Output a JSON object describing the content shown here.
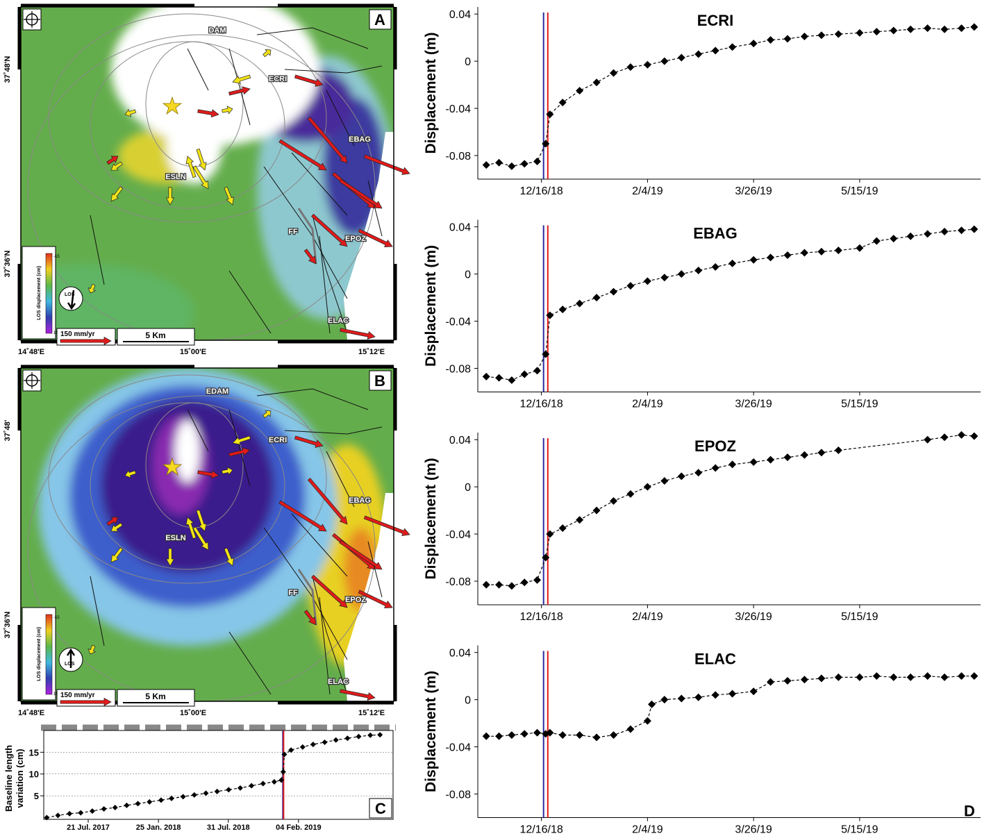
{
  "maps": [
    {
      "panel_label": "A",
      "lat_labels": [
        "37˚48'N",
        "37˚36'N"
      ],
      "lon_labels": [
        "14˚48'E",
        "15˚00'E",
        "15˚12'E"
      ],
      "station_labels": [
        "DAM",
        "ECRI",
        "EBAG",
        "ESLN",
        "EPOZ",
        "ELAC"
      ],
      "fault_label": "FF",
      "legend": {
        "title": "LOS displacement (cm)",
        "min": -15,
        "max": 15,
        "los": "LOS",
        "velocity": "150 mm/yr",
        "scale": "5 Km"
      }
    },
    {
      "panel_label": "B",
      "lat_labels": [
        "37˚48'",
        "37˚36'N"
      ],
      "lon_labels": [
        "14˚48'E",
        "15˚00'E",
        "15˚12'E"
      ],
      "station_labels": [
        "EDAM",
        "ECRI",
        "EBAG",
        "ESLN",
        "EPOZ",
        "ELAC"
      ],
      "fault_label": "FF",
      "legend": {
        "title": "LOS displacement (cm)",
        "min": -15,
        "max": 15,
        "los": "LOS",
        "velocity": "150 mm/yr",
        "scale": "5 Km"
      }
    }
  ],
  "chart_data": [
    {
      "type": "line",
      "panel_label": "C",
      "ylabel": [
        "Baseline length",
        "variation (cm)"
      ],
      "color": "#000000",
      "grid": true,
      "x": [
        "2017-04-01",
        "2017-05-01",
        "2017-06-01",
        "2017-07-01",
        "2017-08-01",
        "2017-09-01",
        "2017-10-01",
        "2017-11-01",
        "2017-12-01",
        "2018-01-01",
        "2018-02-01",
        "2018-03-01",
        "2018-04-01",
        "2018-05-01",
        "2018-06-01",
        "2018-07-01",
        "2018-08-01",
        "2018-09-01",
        "2018-10-01",
        "2018-11-01",
        "2018-12-01",
        "2018-12-20",
        "2018-12-25",
        "2018-12-28",
        "2019-01-15",
        "2019-02-15",
        "2019-03-15",
        "2019-04-15",
        "2019-05-15",
        "2019-06-15",
        "2019-07-15",
        "2019-08-15",
        "2019-09-10"
      ],
      "values": [
        0,
        0.5,
        0.9,
        1.1,
        1.5,
        2.0,
        2.3,
        2.8,
        3.2,
        3.6,
        4.0,
        4.4,
        4.8,
        5.2,
        5.6,
        6.0,
        6.4,
        6.8,
        7.3,
        7.8,
        8.2,
        8.6,
        10.5,
        14.5,
        15.5,
        16.2,
        16.8,
        17.3,
        17.8,
        18.2,
        18.6,
        18.9,
        19.0
      ],
      "xlim": [
        "2017-03-24",
        "2019-10-15"
      ],
      "ylim": [
        -0.4,
        20
      ],
      "xticks": [
        {
          "value": "2017-07-21",
          "label": "21 Jul. 2017"
        },
        {
          "value": "2018-01-25",
          "label": "25 Jan. 2018"
        },
        {
          "value": "2018-07-31",
          "label": "31 Jul. 2018"
        },
        {
          "value": "2019-02-04",
          "label": "04 Feb. 2019"
        }
      ],
      "yticks": [
        5,
        10,
        15
      ],
      "event_lines": [
        {
          "x": "2018-12-24",
          "color": "#2a2a9c"
        },
        {
          "x": "2018-12-26",
          "color": "#e01b1b"
        }
      ]
    },
    {
      "type": "line",
      "title": "ECRI",
      "ylabel": "Displacement (m)",
      "color": "#000000",
      "x": [
        "2018-11-20",
        "2018-11-26",
        "2018-12-02",
        "2018-12-08",
        "2018-12-14",
        "2018-12-18",
        "2018-12-20",
        "2018-12-26",
        "2019-01-03",
        "2019-01-11",
        "2019-01-19",
        "2019-01-27",
        "2019-02-04",
        "2019-02-12",
        "2019-02-20",
        "2019-02-28",
        "2019-03-08",
        "2019-03-16",
        "2019-03-26",
        "2019-04-03",
        "2019-04-11",
        "2019-04-19",
        "2019-04-27",
        "2019-05-05",
        "2019-05-15",
        "2019-05-23",
        "2019-05-31",
        "2019-06-08",
        "2019-06-16",
        "2019-06-24",
        "2019-07-02",
        "2019-07-08"
      ],
      "values": [
        -0.088,
        -0.086,
        -0.089,
        -0.087,
        -0.085,
        -0.07,
        -0.045,
        -0.035,
        -0.025,
        -0.018,
        -0.01,
        -0.005,
        -0.003,
        0,
        0.003,
        0.006,
        0.009,
        0.012,
        0.015,
        0.018,
        0.019,
        0.021,
        0.022,
        0.023,
        0.024,
        0.025,
        0.026,
        0.027,
        0.028,
        0.027,
        0.028,
        0.029
      ],
      "xlim": [
        "2018-11-16",
        "2019-07-11"
      ],
      "ylim": [
        -0.1,
        0.046
      ],
      "xticks": [
        {
          "value": "2018-12-16",
          "label": "12/16/18"
        },
        {
          "value": "2019-02-04",
          "label": "2/4/19"
        },
        {
          "value": "2019-03-26",
          "label": "3/26/19"
        },
        {
          "value": "2019-05-15",
          "label": "5/15/19"
        }
      ],
      "yticks": [
        0.04,
        0,
        -0.04,
        -0.08
      ],
      "event_lines": [
        {
          "x": "2018-12-17",
          "color": "#2a2a9c"
        },
        {
          "x": "2018-12-19",
          "color": "#e01b1b"
        }
      ]
    },
    {
      "type": "line",
      "title": "EBAG",
      "ylabel": "Displacement (m)",
      "color": "#000000",
      "x": [
        "2018-11-20",
        "2018-11-26",
        "2018-12-02",
        "2018-12-08",
        "2018-12-14",
        "2018-12-18",
        "2018-12-20",
        "2018-12-26",
        "2019-01-03",
        "2019-01-11",
        "2019-01-19",
        "2019-01-27",
        "2019-02-04",
        "2019-02-12",
        "2019-02-20",
        "2019-02-28",
        "2019-03-08",
        "2019-03-16",
        "2019-03-26",
        "2019-04-03",
        "2019-04-11",
        "2019-04-19",
        "2019-04-27",
        "2019-05-05",
        "2019-05-15",
        "2019-05-23",
        "2019-05-31",
        "2019-06-08",
        "2019-06-16",
        "2019-06-24",
        "2019-07-02",
        "2019-07-08"
      ],
      "values": [
        -0.087,
        -0.088,
        -0.09,
        -0.085,
        -0.082,
        -0.068,
        -0.035,
        -0.03,
        -0.025,
        -0.02,
        -0.015,
        -0.01,
        -0.006,
        -0.003,
        0,
        0.003,
        0.006,
        0.009,
        0.012,
        0.014,
        0.016,
        0.018,
        0.019,
        0.02,
        0.022,
        0.028,
        0.03,
        0.032,
        0.034,
        0.036,
        0.037,
        0.038
      ],
      "xlim": [
        "2018-11-16",
        "2019-07-11"
      ],
      "ylim": [
        -0.1,
        0.046
      ],
      "xticks": [
        {
          "value": "2018-12-16",
          "label": "12/16/18"
        },
        {
          "value": "2019-02-04",
          "label": "2/4/19"
        },
        {
          "value": "2019-03-26",
          "label": "3/26/19"
        },
        {
          "value": "2019-05-15",
          "label": "5/15/19"
        }
      ],
      "yticks": [
        0.04,
        0,
        -0.04,
        -0.08
      ],
      "event_lines": [
        {
          "x": "2018-12-17",
          "color": "#2a2a9c"
        },
        {
          "x": "2018-12-19",
          "color": "#e01b1b"
        }
      ]
    },
    {
      "type": "line",
      "title": "EPOZ",
      "ylabel": "Displacement (m)",
      "color": "#000000",
      "x": [
        "2018-11-20",
        "2018-11-26",
        "2018-12-02",
        "2018-12-08",
        "2018-12-14",
        "2018-12-18",
        "2018-12-20",
        "2018-12-26",
        "2019-01-03",
        "2019-01-11",
        "2019-01-19",
        "2019-01-27",
        "2019-02-04",
        "2019-02-12",
        "2019-02-20",
        "2019-02-28",
        "2019-03-08",
        "2019-03-16",
        "2019-03-26",
        "2019-04-03",
        "2019-04-11",
        "2019-04-19",
        "2019-04-27",
        "2019-05-05",
        "2019-06-16",
        "2019-06-24",
        "2019-07-02",
        "2019-07-08"
      ],
      "values": [
        -0.083,
        -0.083,
        -0.084,
        -0.081,
        -0.079,
        -0.06,
        -0.04,
        -0.035,
        -0.028,
        -0.02,
        -0.012,
        -0.006,
        0,
        0.005,
        0.009,
        0.012,
        0.016,
        0.019,
        0.021,
        0.023,
        0.025,
        0.027,
        0.029,
        0.031,
        0.04,
        0.042,
        0.044,
        0.043
      ],
      "xlim": [
        "2018-11-16",
        "2019-07-11"
      ],
      "ylim": [
        -0.1,
        0.046
      ],
      "xticks": [
        {
          "value": "2018-12-16",
          "label": "12/16/18"
        },
        {
          "value": "2019-02-04",
          "label": "2/4/19"
        },
        {
          "value": "2019-03-26",
          "label": "3/26/19"
        },
        {
          "value": "2019-05-15",
          "label": "5/15/19"
        }
      ],
      "yticks": [
        0.04,
        0,
        -0.04,
        -0.08
      ],
      "event_lines": [
        {
          "x": "2018-12-17",
          "color": "#2a2a9c"
        },
        {
          "x": "2018-12-19",
          "color": "#e01b1b"
        }
      ]
    },
    {
      "type": "line",
      "title": "ELAC",
      "ylabel": "Displacement (m)",
      "panel_label": "D",
      "color": "#000000",
      "x": [
        "2018-11-20",
        "2018-11-26",
        "2018-12-02",
        "2018-12-08",
        "2018-12-14",
        "2018-12-18",
        "2018-12-20",
        "2018-12-26",
        "2019-01-03",
        "2019-01-11",
        "2019-01-19",
        "2019-01-27",
        "2019-02-04",
        "2019-02-06",
        "2019-02-12",
        "2019-02-20",
        "2019-02-28",
        "2019-03-08",
        "2019-03-16",
        "2019-03-26",
        "2019-04-03",
        "2019-04-11",
        "2019-04-19",
        "2019-04-27",
        "2019-05-05",
        "2019-05-15",
        "2019-05-23",
        "2019-05-31",
        "2019-06-08",
        "2019-06-16",
        "2019-06-24",
        "2019-07-02",
        "2019-07-08"
      ],
      "values": [
        -0.031,
        -0.031,
        -0.03,
        -0.029,
        -0.028,
        -0.029,
        -0.028,
        -0.03,
        -0.03,
        -0.032,
        -0.03,
        -0.025,
        -0.018,
        -0.004,
        0,
        0.001,
        0.002,
        0.004,
        0.005,
        0.007,
        0.015,
        0.016,
        0.017,
        0.018,
        0.019,
        0.019,
        0.02,
        0.019,
        0.019,
        0.02,
        0.019,
        0.02,
        0.02
      ],
      "xlim": [
        "2018-11-16",
        "2019-07-11"
      ],
      "ylim": [
        -0.1,
        0.046
      ],
      "xticks": [
        {
          "value": "2018-12-16",
          "label": "12/16/18"
        },
        {
          "value": "2019-02-04",
          "label": "2/4/19"
        },
        {
          "value": "2019-03-26",
          "label": "3/26/19"
        },
        {
          "value": "2019-05-15",
          "label": "5/15/19"
        }
      ],
      "yticks": [
        0.04,
        0,
        -0.04,
        -0.08
      ],
      "event_lines": [
        {
          "x": "2018-12-17",
          "color": "#2a2a9c"
        },
        {
          "x": "2018-12-19",
          "color": "#e01b1b"
        }
      ]
    }
  ]
}
